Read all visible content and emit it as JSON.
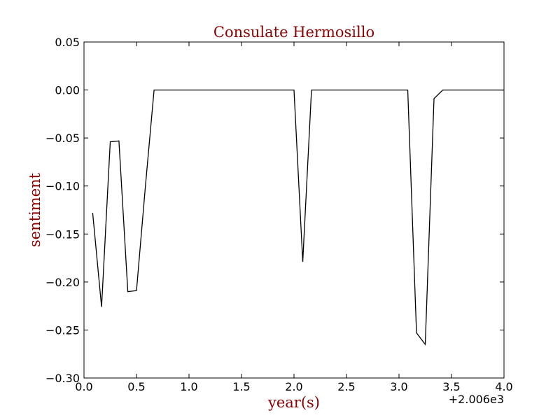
{
  "chart_data": {
    "type": "line",
    "title": "Consulate Hermosillo",
    "xlabel": "year(s)",
    "ylabel": "sentiment",
    "x_offset_label": "+2.006e3",
    "xlim": [
      0.0,
      4.0
    ],
    "ylim": [
      -0.3,
      0.05
    ],
    "x_ticks": [
      0.0,
      0.5,
      1.0,
      1.5,
      2.0,
      2.5,
      3.0,
      3.5,
      4.0
    ],
    "x_tick_labels": [
      "0.0",
      "0.5",
      "1.0",
      "1.5",
      "2.0",
      "2.5",
      "3.0",
      "3.5",
      "4.0"
    ],
    "y_ticks": [
      0.05,
      0.0,
      -0.05,
      -0.1,
      -0.15,
      -0.2,
      -0.25,
      -0.3
    ],
    "y_tick_labels": [
      "0.05",
      "0.00",
      "−0.05",
      "−0.10",
      "−0.15",
      "−0.20",
      "−0.25",
      "−0.30"
    ],
    "grid": false,
    "legend": "none",
    "colors": {
      "line": "#000000",
      "title": "#8b0000",
      "axis_labels": "#8b0000"
    },
    "series": [
      {
        "x": [
          0.083,
          0.167,
          0.25,
          0.333,
          0.417,
          0.5,
          0.583,
          0.667,
          0.75,
          0.833,
          0.917,
          1.0,
          1.083,
          1.167,
          1.25,
          1.333,
          1.417,
          1.5,
          1.583,
          1.667,
          1.75,
          1.833,
          1.917,
          2.0,
          2.083,
          2.167,
          2.25,
          2.333,
          2.417,
          2.5,
          2.583,
          2.667,
          2.75,
          2.833,
          2.917,
          3.0,
          3.083,
          3.167,
          3.25,
          3.333,
          3.417,
          3.5,
          3.583,
          3.667,
          3.75,
          3.833,
          3.917,
          4.0
        ],
        "y": [
          -0.128,
          -0.226,
          -0.054,
          -0.053,
          -0.21,
          -0.209,
          -0.103,
          0.0,
          0.0,
          0.0,
          0.0,
          0.0,
          0.0,
          0.0,
          0.0,
          0.0,
          0.0,
          0.0,
          0.0,
          0.0,
          0.0,
          0.0,
          0.0,
          0.0,
          -0.179,
          0.0,
          0.0,
          0.0,
          0.0,
          0.0,
          0.0,
          0.0,
          0.0,
          0.0,
          0.0,
          0.0,
          0.0,
          -0.253,
          -0.265,
          -0.009,
          0.0,
          0.0,
          0.0,
          0.0,
          0.0,
          0.0,
          0.0,
          0.0
        ]
      }
    ]
  }
}
